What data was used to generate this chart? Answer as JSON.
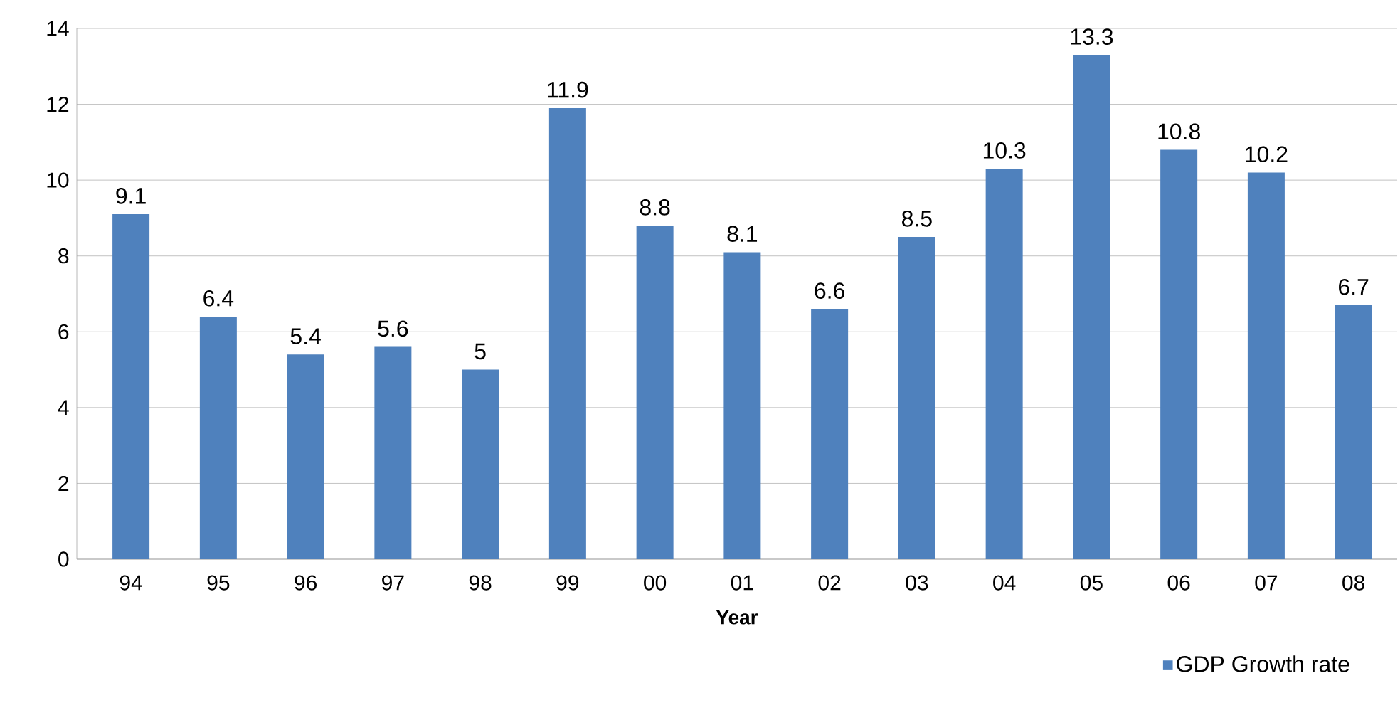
{
  "chart_data": {
    "type": "bar",
    "xlabel": "Year",
    "categories": [
      "94",
      "95",
      "96",
      "97",
      "98",
      "99",
      "00",
      "01",
      "02",
      "03",
      "04",
      "05",
      "06",
      "07",
      "08"
    ],
    "series": [
      {
        "name": "GDP Growth rate",
        "color": "#4f81bd",
        "values": [
          9.1,
          6.4,
          5.4,
          5.6,
          5,
          11.9,
          8.8,
          8.1,
          6.6,
          8.5,
          10.3,
          13.3,
          10.8,
          10.2,
          6.7
        ]
      }
    ],
    "ylim": [
      0,
      14
    ],
    "yticks": [
      0,
      2,
      4,
      6,
      8,
      10,
      12,
      14
    ],
    "grid": "y",
    "legend": "bottom right",
    "data_labels": true
  }
}
